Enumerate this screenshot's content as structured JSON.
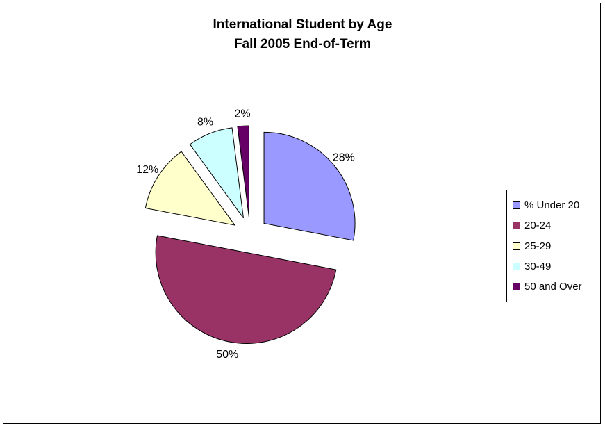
{
  "chart_data": {
    "type": "pie",
    "title": "International Student by Age",
    "subtitle": "Fall 2005 End-of-Term",
    "legend_position": "right",
    "exploded": true,
    "slices": [
      {
        "label": "% Under 20",
        "value": 28,
        "display": "28%",
        "color": "#9999ff"
      },
      {
        "label": "20-24",
        "value": 50,
        "display": "50%",
        "color": "#993366"
      },
      {
        "label": "25-29",
        "value": 12,
        "display": "12%",
        "color": "#ffffcc"
      },
      {
        "label": "30-49",
        "value": 8,
        "display": "8%",
        "color": "#ccffff"
      },
      {
        "label": "50 and Over",
        "value": 2,
        "display": "2%",
        "color": "#660066"
      }
    ]
  }
}
